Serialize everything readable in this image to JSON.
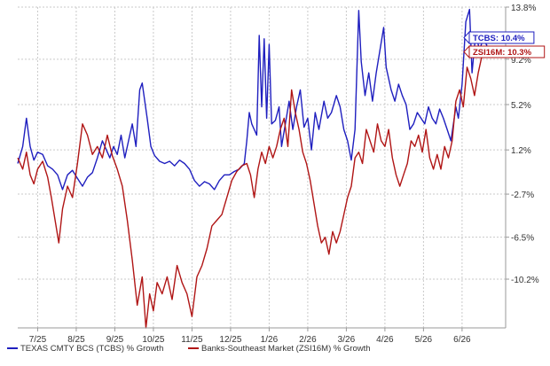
{
  "chart_data": {
    "type": "line",
    "x_tick_labels": [
      "7/25",
      "8/25",
      "9/25",
      "10/25",
      "11/25",
      "12/25",
      "1/26",
      "2/26",
      "3/26",
      "4/26",
      "5/26",
      "6/26"
    ],
    "y_tick_labels": [
      "13.8%",
      "9.2%",
      "5.2%",
      "1.2%",
      "-2.7%",
      "-6.5%",
      "-10.2%"
    ],
    "y_ticks": [
      13.8,
      9.2,
      5.2,
      1.2,
      -2.7,
      -6.5,
      -10.2
    ],
    "ylim": [
      -14.5,
      13.8
    ],
    "grid": true,
    "legend_position": "bottom",
    "series": [
      {
        "name": "TEXAS CMTY BCS (TCBS) % Growth",
        "short": "TCBS",
        "end_label": "10.4%",
        "color": "#1f1fbf",
        "points": [
          [
            0.0,
            0.0
          ],
          [
            0.2,
            1.5
          ],
          [
            0.35,
            4.0
          ],
          [
            0.5,
            1.5
          ],
          [
            0.65,
            0.3
          ],
          [
            0.8,
            1.0
          ],
          [
            1.0,
            0.8
          ],
          [
            1.2,
            -0.2
          ],
          [
            1.4,
            -0.5
          ],
          [
            1.6,
            -1.0
          ],
          [
            1.8,
            -2.3
          ],
          [
            2.0,
            -1.0
          ],
          [
            2.2,
            -0.6
          ],
          [
            2.4,
            -1.3
          ],
          [
            2.6,
            -2.0
          ],
          [
            2.8,
            -1.2
          ],
          [
            3.0,
            -0.8
          ],
          [
            3.2,
            0.5
          ],
          [
            3.4,
            2.0
          ],
          [
            3.6,
            1.0
          ],
          [
            3.7,
            0.5
          ],
          [
            3.85,
            1.5
          ],
          [
            4.0,
            0.8
          ],
          [
            4.15,
            2.5
          ],
          [
            4.3,
            0.5
          ],
          [
            4.45,
            2.0
          ],
          [
            4.6,
            3.5
          ],
          [
            4.75,
            1.5
          ],
          [
            4.9,
            6.5
          ],
          [
            5.0,
            7.1
          ],
          [
            5.2,
            4.0
          ],
          [
            5.35,
            1.5
          ],
          [
            5.5,
            0.7
          ],
          [
            5.7,
            0.2
          ],
          [
            5.9,
            0.0
          ],
          [
            6.1,
            0.2
          ],
          [
            6.3,
            -0.2
          ],
          [
            6.5,
            0.3
          ],
          [
            6.7,
            0.0
          ],
          [
            6.9,
            -0.5
          ],
          [
            7.1,
            -1.5
          ],
          [
            7.3,
            -2.0
          ],
          [
            7.5,
            -1.6
          ],
          [
            7.7,
            -1.8
          ],
          [
            7.9,
            -2.3
          ],
          [
            8.1,
            -1.5
          ],
          [
            8.3,
            -1.0
          ],
          [
            8.5,
            -1.0
          ],
          [
            8.7,
            -0.7
          ],
          [
            8.9,
            -0.5
          ],
          [
            9.1,
            0.0
          ],
          [
            9.2,
            2.0
          ],
          [
            9.3,
            4.5
          ],
          [
            9.4,
            3.5
          ],
          [
            9.5,
            3.0
          ],
          [
            9.6,
            2.5
          ],
          [
            9.7,
            11.3
          ],
          [
            9.8,
            5.0
          ],
          [
            9.9,
            11.0
          ],
          [
            10.0,
            4.0
          ],
          [
            10.1,
            10.5
          ],
          [
            10.2,
            3.5
          ],
          [
            10.35,
            3.8
          ],
          [
            10.5,
            5.0
          ],
          [
            10.6,
            1.5
          ],
          [
            10.75,
            3.5
          ],
          [
            10.9,
            5.5
          ],
          [
            11.05,
            3.0
          ],
          [
            11.2,
            5.0
          ],
          [
            11.35,
            6.5
          ],
          [
            11.5,
            3.2
          ],
          [
            11.65,
            4.0
          ],
          [
            11.8,
            1.2
          ],
          [
            11.95,
            4.5
          ],
          [
            12.1,
            3.0
          ],
          [
            12.3,
            5.5
          ],
          [
            12.45,
            4.0
          ],
          [
            12.6,
            4.5
          ],
          [
            12.8,
            6.0
          ],
          [
            12.95,
            5.0
          ],
          [
            13.1,
            3.0
          ],
          [
            13.25,
            2.0
          ],
          [
            13.4,
            0.3
          ],
          [
            13.55,
            3.0
          ],
          [
            13.7,
            13.5
          ],
          [
            13.8,
            9.0
          ],
          [
            13.95,
            6.0
          ],
          [
            14.1,
            8.0
          ],
          [
            14.25,
            5.5
          ],
          [
            14.4,
            8.0
          ],
          [
            14.55,
            10.0
          ],
          [
            14.7,
            12.0
          ],
          [
            14.8,
            8.5
          ],
          [
            14.9,
            7.5
          ],
          [
            15.0,
            6.5
          ],
          [
            15.15,
            5.5
          ],
          [
            15.3,
            7.0
          ],
          [
            15.45,
            6.0
          ],
          [
            15.6,
            5.2
          ],
          [
            15.75,
            3.0
          ],
          [
            15.9,
            3.5
          ],
          [
            16.05,
            4.5
          ],
          [
            16.2,
            4.0
          ],
          [
            16.35,
            3.5
          ],
          [
            16.5,
            5.0
          ],
          [
            16.65,
            4.0
          ],
          [
            16.8,
            3.5
          ],
          [
            16.95,
            4.8
          ],
          [
            17.1,
            4.0
          ],
          [
            17.25,
            3.0
          ],
          [
            17.4,
            2.0
          ],
          [
            17.5,
            3.5
          ],
          [
            17.6,
            5.0
          ],
          [
            17.7,
            4.0
          ],
          [
            17.85,
            7.0
          ],
          [
            18.0,
            12.5
          ],
          [
            18.15,
            13.6
          ],
          [
            18.25,
            8.0
          ],
          [
            18.4,
            11.5
          ],
          [
            18.55,
            10.0
          ],
          [
            18.7,
            11.0
          ],
          [
            18.85,
            10.4
          ]
        ]
      },
      {
        "name": "Banks-Southeast Market (ZSI16M) % Growth",
        "short": "ZSI16M",
        "end_label": "10.3%",
        "color": "#b01515",
        "points": [
          [
            0.0,
            0.5
          ],
          [
            0.2,
            -0.5
          ],
          [
            0.35,
            1.0
          ],
          [
            0.5,
            -1.0
          ],
          [
            0.65,
            -1.8
          ],
          [
            0.8,
            -0.5
          ],
          [
            1.0,
            0.2
          ],
          [
            1.2,
            -1.2
          ],
          [
            1.35,
            -3.0
          ],
          [
            1.5,
            -5.0
          ],
          [
            1.65,
            -7.0
          ],
          [
            1.8,
            -4.0
          ],
          [
            2.0,
            -2.0
          ],
          [
            2.2,
            -3.0
          ],
          [
            2.4,
            0.0
          ],
          [
            2.6,
            3.5
          ],
          [
            2.8,
            2.5
          ],
          [
            3.0,
            0.8
          ],
          [
            3.2,
            1.5
          ],
          [
            3.4,
            0.5
          ],
          [
            3.6,
            2.5
          ],
          [
            3.8,
            0.7
          ],
          [
            4.0,
            -0.5
          ],
          [
            4.2,
            -2.0
          ],
          [
            4.4,
            -5.0
          ],
          [
            4.6,
            -8.5
          ],
          [
            4.8,
            -12.5
          ],
          [
            5.0,
            -10.0
          ],
          [
            5.15,
            -14.5
          ],
          [
            5.3,
            -11.5
          ],
          [
            5.45,
            -13.0
          ],
          [
            5.6,
            -10.5
          ],
          [
            5.8,
            -11.5
          ],
          [
            6.0,
            -10.0
          ],
          [
            6.2,
            -12.0
          ],
          [
            6.4,
            -9.0
          ],
          [
            6.6,
            -10.5
          ],
          [
            6.8,
            -11.5
          ],
          [
            7.0,
            -13.5
          ],
          [
            7.2,
            -10.0
          ],
          [
            7.4,
            -9.0
          ],
          [
            7.6,
            -7.5
          ],
          [
            7.8,
            -5.5
          ],
          [
            8.0,
            -5.0
          ],
          [
            8.2,
            -4.5
          ],
          [
            8.4,
            -3.0
          ],
          [
            8.6,
            -1.5
          ],
          [
            8.8,
            -0.7
          ],
          [
            9.0,
            -0.2
          ],
          [
            9.2,
            0.0
          ],
          [
            9.35,
            -1.0
          ],
          [
            9.5,
            -3.0
          ],
          [
            9.65,
            -0.5
          ],
          [
            9.8,
            1.0
          ],
          [
            9.95,
            0.0
          ],
          [
            10.1,
            1.5
          ],
          [
            10.25,
            0.5
          ],
          [
            10.4,
            1.5
          ],
          [
            10.55,
            3.0
          ],
          [
            10.7,
            4.0
          ],
          [
            10.85,
            1.5
          ],
          [
            11.0,
            6.5
          ],
          [
            11.15,
            4.5
          ],
          [
            11.3,
            3.0
          ],
          [
            11.45,
            1.0
          ],
          [
            11.6,
            0.0
          ],
          [
            11.75,
            -1.5
          ],
          [
            11.9,
            -3.5
          ],
          [
            12.05,
            -5.5
          ],
          [
            12.2,
            -7.0
          ],
          [
            12.35,
            -6.5
          ],
          [
            12.5,
            -8.0
          ],
          [
            12.65,
            -6.0
          ],
          [
            12.8,
            -7.0
          ],
          [
            12.95,
            -6.0
          ],
          [
            13.1,
            -4.5
          ],
          [
            13.25,
            -3.0
          ],
          [
            13.4,
            -2.0
          ],
          [
            13.55,
            0.5
          ],
          [
            13.7,
            1.0
          ],
          [
            13.85,
            0.0
          ],
          [
            14.0,
            3.0
          ],
          [
            14.15,
            2.0
          ],
          [
            14.3,
            1.0
          ],
          [
            14.45,
            3.5
          ],
          [
            14.6,
            2.0
          ],
          [
            14.75,
            1.5
          ],
          [
            14.9,
            3.0
          ],
          [
            15.05,
            0.5
          ],
          [
            15.2,
            -1.0
          ],
          [
            15.35,
            -2.0
          ],
          [
            15.5,
            -1.0
          ],
          [
            15.65,
            0.0
          ],
          [
            15.8,
            2.0
          ],
          [
            15.95,
            1.5
          ],
          [
            16.1,
            2.5
          ],
          [
            16.25,
            1.0
          ],
          [
            16.4,
            3.0
          ],
          [
            16.55,
            0.5
          ],
          [
            16.7,
            -0.5
          ],
          [
            16.85,
            0.8
          ],
          [
            17.0,
            -0.5
          ],
          [
            17.15,
            1.5
          ],
          [
            17.3,
            0.5
          ],
          [
            17.45,
            2.0
          ],
          [
            17.6,
            5.5
          ],
          [
            17.75,
            6.5
          ],
          [
            17.9,
            5.0
          ],
          [
            18.05,
            8.5
          ],
          [
            18.2,
            7.5
          ],
          [
            18.35,
            6.0
          ],
          [
            18.5,
            8.0
          ],
          [
            18.65,
            9.5
          ],
          [
            18.8,
            10.3
          ]
        ]
      }
    ],
    "xlim": [
      0,
      19.6
    ],
    "x_tick_positions": [
      0.8,
      2.35,
      3.9,
      5.45,
      7.0,
      8.55,
      10.1,
      11.65,
      13.2,
      14.75,
      16.3,
      17.85
    ]
  }
}
